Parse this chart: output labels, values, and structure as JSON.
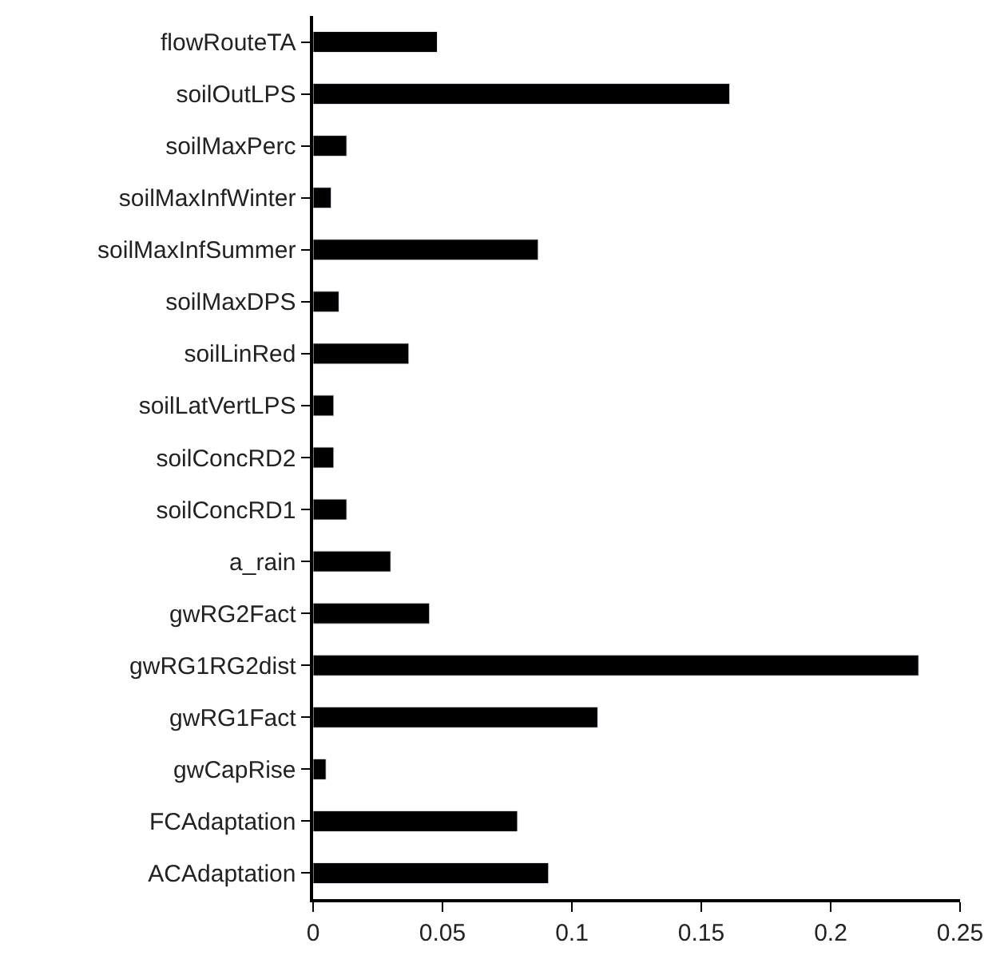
{
  "chart_data": {
    "type": "bar",
    "orientation": "horizontal",
    "categories": [
      "flowRouteTA",
      "soilOutLPS",
      "soilMaxPerc",
      "soilMaxInfWinter",
      "soilMaxInfSummer",
      "soilMaxDPS",
      "soilLinRed",
      "soilLatVertLPS",
      "soilConcRD2",
      "soilConcRD1",
      "a_rain",
      "gwRG2Fact",
      "gwRG1RG2dist",
      "gwRG1Fact",
      "gwCapRise",
      "FCAdaptation",
      "ACAdaptation"
    ],
    "values": [
      0.048,
      0.161,
      0.013,
      0.007,
      0.087,
      0.01,
      0.037,
      0.008,
      0.008,
      0.013,
      0.03,
      0.045,
      0.234,
      0.11,
      0.005,
      0.079,
      0.091
    ],
    "color": "#000000",
    "xlim": [
      0,
      0.25
    ],
    "xticks": [
      0,
      0.05,
      0.1,
      0.15,
      0.2,
      0.25
    ]
  }
}
